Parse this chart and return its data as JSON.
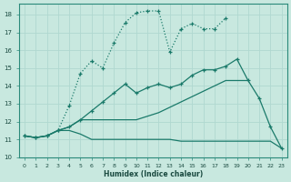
{
  "xlabel": "Humidex (Indice chaleur)",
  "bg_color": "#c8e8df",
  "grid_color": "#b0d8d0",
  "line_color": "#1a7a6a",
  "xlim": [
    -0.5,
    23.5
  ],
  "ylim": [
    10,
    18.6
  ],
  "xticks": [
    0,
    1,
    2,
    3,
    4,
    5,
    6,
    7,
    8,
    9,
    10,
    11,
    12,
    13,
    14,
    15,
    16,
    17,
    18,
    19,
    20,
    21,
    22,
    23
  ],
  "yticks": [
    10,
    11,
    12,
    13,
    14,
    15,
    16,
    17,
    18
  ],
  "line_dotted_x": [
    0,
    1,
    2,
    3,
    4,
    5,
    6,
    7,
    8,
    9,
    10,
    11,
    12,
    13,
    14,
    15,
    16,
    17,
    18
  ],
  "line_dotted_y": [
    11.2,
    11.1,
    11.2,
    11.5,
    12.9,
    14.7,
    15.4,
    15.0,
    16.4,
    17.55,
    18.1,
    18.2,
    18.2,
    15.9,
    17.2,
    17.5,
    17.2,
    17.2,
    17.8
  ],
  "line_solid1_x": [
    0,
    1,
    2,
    3,
    4,
    5,
    6,
    7,
    8,
    9,
    10,
    11,
    12,
    13,
    14,
    15,
    16,
    17,
    18,
    19,
    20,
    21,
    22,
    23
  ],
  "line_solid1_y": [
    11.2,
    11.1,
    11.2,
    11.5,
    11.7,
    12.1,
    12.6,
    13.1,
    13.6,
    14.1,
    13.6,
    13.9,
    14.1,
    13.9,
    14.1,
    14.6,
    14.9,
    14.9,
    15.1,
    15.5,
    14.3,
    13.3,
    11.7,
    10.5
  ],
  "line_solid2_x": [
    0,
    1,
    2,
    3,
    4,
    5,
    6,
    7,
    8,
    9,
    10,
    11,
    12,
    13,
    14,
    15,
    16,
    17,
    18,
    19,
    20
  ],
  "line_solid2_y": [
    11.2,
    11.1,
    11.2,
    11.5,
    11.7,
    12.1,
    12.1,
    12.1,
    12.1,
    12.1,
    12.1,
    12.3,
    12.5,
    12.8,
    13.1,
    13.4,
    13.7,
    14.0,
    14.3,
    14.3,
    14.3
  ],
  "line_flat_x": [
    0,
    1,
    2,
    3,
    4,
    5,
    6,
    7,
    8,
    9,
    10,
    11,
    12,
    13,
    14,
    15,
    16,
    17,
    18,
    19,
    20,
    21,
    22,
    23
  ],
  "line_flat_y": [
    11.2,
    11.1,
    11.2,
    11.5,
    11.5,
    11.3,
    11.0,
    11.0,
    11.0,
    11.0,
    11.0,
    11.0,
    11.0,
    11.0,
    10.9,
    10.9,
    10.9,
    10.9,
    10.9,
    10.9,
    10.9,
    10.9,
    10.9,
    10.5
  ]
}
